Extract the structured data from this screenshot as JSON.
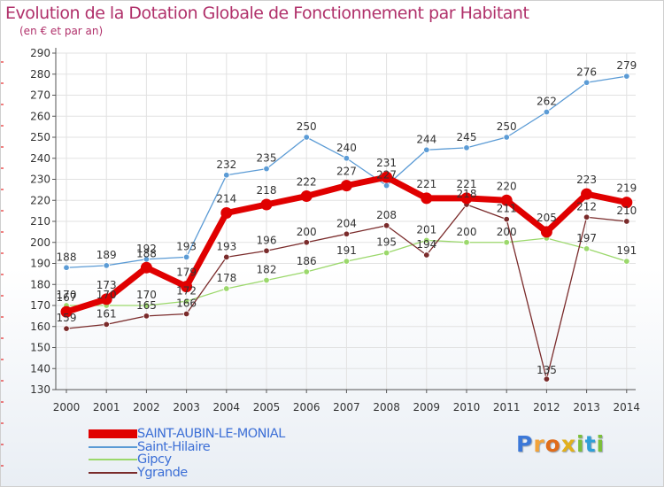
{
  "title": "Evolution de la Dotation Globale de Fonctionnement par Habitant",
  "subtitle": "(en € et par an)",
  "logo": {
    "text": "Proxiti",
    "letters": [
      "P",
      "r",
      "o",
      "x",
      "i",
      "t",
      "i"
    ]
  },
  "chart_data": {
    "type": "line",
    "title": "Evolution de la Dotation Globale de Fonctionnement par Habitant",
    "ylabel": "(en € et par an)",
    "xlabel": "",
    "ylim": [
      130,
      290
    ],
    "yticks": [
      "130",
      "140",
      "150",
      "160",
      "170",
      "180",
      "190",
      "200",
      "210",
      "220",
      "230",
      "240",
      "250",
      "260",
      "270",
      "280",
      "290"
    ],
    "categories": [
      "2000",
      "2001",
      "2002",
      "2003",
      "2004",
      "2005",
      "2006",
      "2007",
      "2008",
      "2009",
      "2010",
      "2011",
      "2012",
      "2013",
      "2014"
    ],
    "legend_position": "bottom-left",
    "series": [
      {
        "name": "Saint-Hilaire",
        "color": "#5b9bd5",
        "values": [
          188,
          189,
          192,
          193,
          232,
          235,
          250,
          240,
          227,
          244,
          245,
          250,
          262,
          276,
          279
        ]
      },
      {
        "name": "Gipcy",
        "color": "#9bd86b",
        "values": [
          170,
          170,
          170,
          172,
          178,
          182,
          186,
          191,
          195,
          201,
          200,
          200,
          202,
          197,
          191
        ]
      },
      {
        "name": "Ygrande",
        "color": "#7a2b2b",
        "values": [
          159,
          161,
          165,
          166,
          193,
          196,
          200,
          204,
          208,
          194,
          218,
          211,
          135,
          212,
          210
        ]
      },
      {
        "name": "SAINT-AUBIN-LE-MONIAL",
        "color": "#e00000",
        "values": [
          167,
          173,
          188,
          179,
          214,
          218,
          222,
          227,
          231,
          221,
          221,
          220,
          205,
          223,
          219
        ]
      }
    ],
    "data_labels": {
      "Saint-Hilaire": [
        "188",
        "189",
        "192",
        "193",
        "232",
        "235",
        "250",
        "240",
        "227",
        "244",
        "245",
        "250",
        "262",
        "276",
        "279"
      ],
      "Gipcy": [
        "170",
        "170",
        "170",
        "172",
        "178",
        "182",
        "186",
        "191",
        "195",
        "201",
        "200",
        "200",
        "",
        "197",
        "191"
      ],
      "Ygrande": [
        "159",
        "161",
        "165",
        "166",
        "193",
        "196",
        "200",
        "204",
        "208",
        "194",
        "218",
        "211",
        "135",
        "212",
        "210"
      ],
      "SAINT-AUBIN-LE-MONIAL": [
        "167",
        "173",
        "188",
        "179",
        "214",
        "218",
        "222",
        "227",
        "231",
        "221",
        "221",
        "220",
        "205",
        "223",
        "219"
      ]
    },
    "legend": [
      "SAINT-AUBIN-LE-MONIAL",
      "Saint-Hilaire",
      "Gipcy",
      "Ygrande"
    ]
  }
}
